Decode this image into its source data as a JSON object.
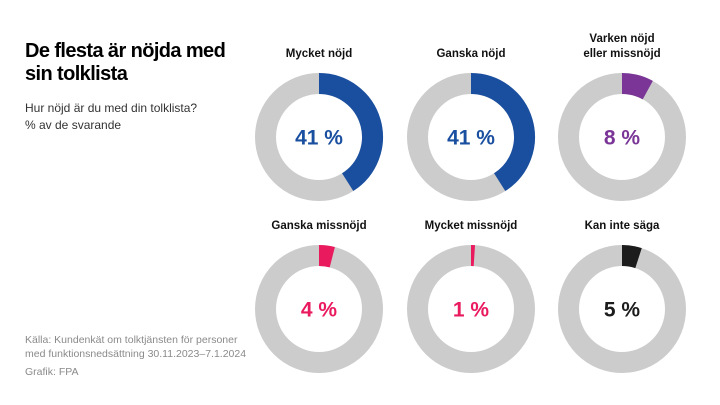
{
  "header": {
    "title": "De flesta är nöjda med sin tolklista",
    "subtitle_line1": "Hur nöjd är du med din tolklista?",
    "subtitle_line2": "% av de svarande"
  },
  "footer": {
    "source_line1": "Källa: Kundenkät om tolktjänsten för personer",
    "source_line2": "med funktionsnedsättning 30.11.2023–7.1.2024",
    "credit": "Grafik: FPA"
  },
  "chart_data": {
    "type": "pie",
    "subtype": "donut-small-multiples",
    "title": "De flesta är nöjda med sin tolklista",
    "subtitle": "Hur nöjd är du med din tolklista? % av de svarande",
    "unit": "%",
    "remainder_color": "#cccccc",
    "series": [
      {
        "name": "Mycket nöjd",
        "label_lines": [
          "Mycket nöjd"
        ],
        "value": 41,
        "display": "41 %",
        "color": "#1a4fa0"
      },
      {
        "name": "Ganska nöjd",
        "label_lines": [
          "Ganska nöjd"
        ],
        "value": 41,
        "display": "41 %",
        "color": "#1a4fa0"
      },
      {
        "name": "Varken nöjd eller missnöjd",
        "label_lines": [
          "Varken nöjd",
          "eller missnöjd"
        ],
        "value": 8,
        "display": "8 %",
        "color": "#7a3597"
      },
      {
        "name": "Ganska missnöjd",
        "label_lines": [
          "Ganska missnöjd"
        ],
        "value": 4,
        "display": "4 %",
        "color": "#ea1a5f"
      },
      {
        "name": "Mycket missnöjd",
        "label_lines": [
          "Mycket missnöjd"
        ],
        "value": 1,
        "display": "1 %",
        "color": "#ea1a5f"
      },
      {
        "name": "Kan inte säga",
        "label_lines": [
          "Kan inte säga"
        ],
        "value": 5,
        "display": "5 %",
        "color": "#1c1c1c"
      }
    ]
  }
}
